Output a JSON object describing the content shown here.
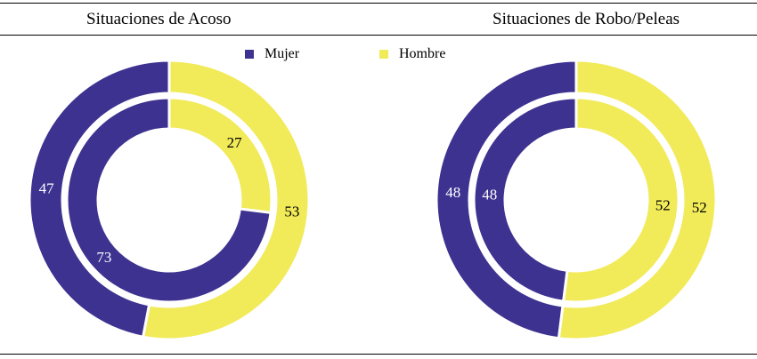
{
  "colors": {
    "mujer": "#3d3290",
    "hombre": "#f1ea59",
    "label_on_dark": "#ffffff",
    "label_on_light": "#000000"
  },
  "legend": [
    {
      "label": "Mujer",
      "color": "#3d3290"
    },
    {
      "label": "Hombre",
      "color": "#f1ea59"
    }
  ],
  "chart_data": [
    {
      "type": "donut",
      "title": "Situaciones de Acoso",
      "categories": [
        "Mujer",
        "Hombre"
      ],
      "rings": [
        {
          "ring": "outer",
          "values": [
            47,
            53
          ]
        },
        {
          "ring": "inner",
          "values": [
            73,
            27
          ]
        }
      ],
      "legend_position": "top-center"
    },
    {
      "type": "donut",
      "title": "Situaciones de Robo/Peleas",
      "categories": [
        "Mujer",
        "Hombre"
      ],
      "rings": [
        {
          "ring": "outer",
          "values": [
            48,
            52
          ]
        },
        {
          "ring": "inner",
          "values": [
            48,
            52
          ]
        }
      ],
      "legend_position": "top-center"
    }
  ]
}
